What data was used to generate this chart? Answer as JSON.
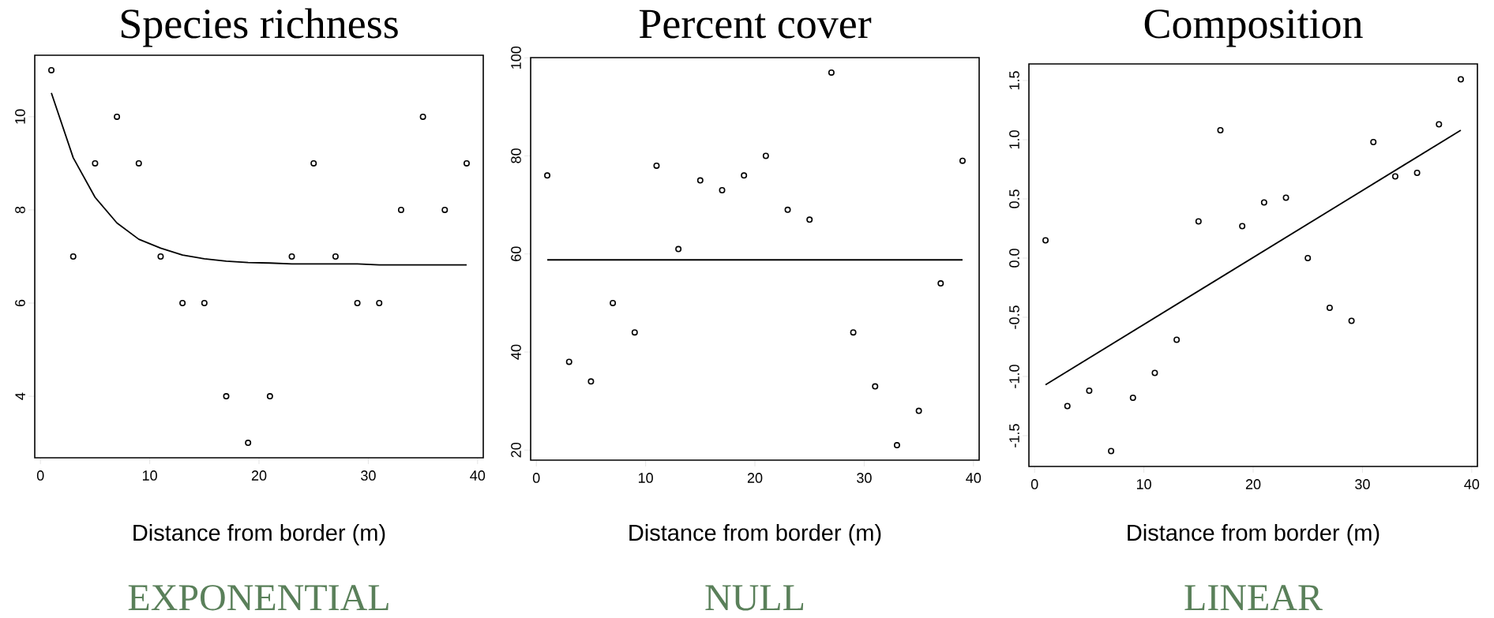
{
  "chart_data": [
    {
      "type": "scatter",
      "title": "Species richness",
      "xlabel": "Distance from border (m)",
      "annotations": [
        "EXPONENTIAL"
      ],
      "xlim": [
        -0.52,
        40.52
      ],
      "xticks": [
        0,
        10,
        20,
        30,
        40
      ],
      "ylim": [
        2.68,
        11.32
      ],
      "yticks": [
        4,
        6,
        8,
        10
      ],
      "series": [
        {
          "type": "scatter",
          "marker": "circle",
          "color": "#000000",
          "x": [
            1,
            3,
            5,
            7,
            9,
            11,
            13,
            15,
            17,
            19,
            21,
            23,
            25,
            27,
            29,
            31,
            33,
            35,
            37,
            39
          ],
          "values": [
            11,
            7,
            9,
            10,
            9,
            7,
            6,
            6,
            4,
            3,
            4,
            7,
            9,
            7,
            6,
            6,
            8,
            10,
            8,
            9
          ]
        },
        {
          "type": "line",
          "marker": "none",
          "color": "#000000",
          "x": [
            1,
            3,
            5,
            7,
            9,
            11,
            13,
            15,
            17,
            19,
            21,
            23,
            25,
            27,
            29,
            31,
            33,
            35,
            37,
            39
          ],
          "values": [
            10.51,
            9.12,
            8.27,
            7.72,
            7.37,
            7.18,
            7.03,
            6.95,
            6.9,
            6.87,
            6.86,
            6.84,
            6.84,
            6.84,
            6.84,
            6.82,
            6.82,
            6.82,
            6.82,
            6.82
          ]
        }
      ]
    },
    {
      "type": "scatter",
      "title": "Percent cover",
      "xlabel": "Distance from border (m)",
      "annotations": [
        "NULL"
      ],
      "xlim": [
        -0.52,
        40.52
      ],
      "xticks": [
        0,
        10,
        20,
        30,
        40
      ],
      "ylim": [
        17.96,
        100.04
      ],
      "yticks": [
        20,
        40,
        60,
        80,
        100
      ],
      "series": [
        {
          "type": "scatter",
          "marker": "circle",
          "color": "#000000",
          "x": [
            1,
            3,
            5,
            7,
            9,
            11,
            13,
            15,
            17,
            19,
            21,
            23,
            25,
            27,
            29,
            31,
            33,
            35,
            37,
            39
          ],
          "values": [
            76,
            38,
            34,
            50,
            44,
            78,
            61,
            75,
            73,
            76,
            80,
            69,
            67,
            97,
            44,
            33,
            21,
            28,
            54,
            79
          ]
        },
        {
          "type": "line",
          "marker": "none",
          "color": "#000000",
          "x": [
            1,
            39
          ],
          "values": [
            58.8,
            58.8
          ]
        }
      ]
    },
    {
      "type": "scatter",
      "title": "Composition",
      "xlabel": "Distance from border (m)",
      "annotations": [
        "LINEAR"
      ],
      "xlim": [
        -0.52,
        40.52
      ],
      "xticks": [
        0,
        10,
        20,
        30,
        40
      ],
      "ylim": [
        -1.76,
        1.64
      ],
      "yticks": [
        {
          "value": -1.5,
          "label": "-1.5"
        },
        {
          "value": -1,
          "label": "-1.0"
        },
        {
          "value": -0.5,
          "label": "-0.5"
        },
        {
          "value": 0,
          "label": "0.0"
        },
        {
          "value": 0.5,
          "label": "0.5"
        },
        {
          "value": 1,
          "label": "1.0"
        },
        {
          "value": 1.5,
          "label": "1.5"
        }
      ],
      "series": [
        {
          "type": "scatter",
          "marker": "circle",
          "color": "#000000",
          "x": [
            1,
            3,
            5,
            7,
            9,
            11,
            13,
            15,
            17,
            19,
            21,
            23,
            25,
            27,
            29,
            31,
            33,
            35,
            37,
            39
          ],
          "values": [
            0.15,
            -1.25,
            -1.12,
            -1.63,
            -1.18,
            -0.97,
            -0.69,
            0.31,
            1.08,
            0.27,
            0.47,
            0.51,
            0.0,
            -0.42,
            -0.53,
            0.98,
            0.69,
            0.72,
            1.13,
            1.51
          ]
        },
        {
          "type": "line",
          "marker": "none",
          "color": "#000000",
          "x": [
            1,
            39
          ],
          "values": [
            -1.07,
            1.08
          ]
        }
      ]
    }
  ]
}
